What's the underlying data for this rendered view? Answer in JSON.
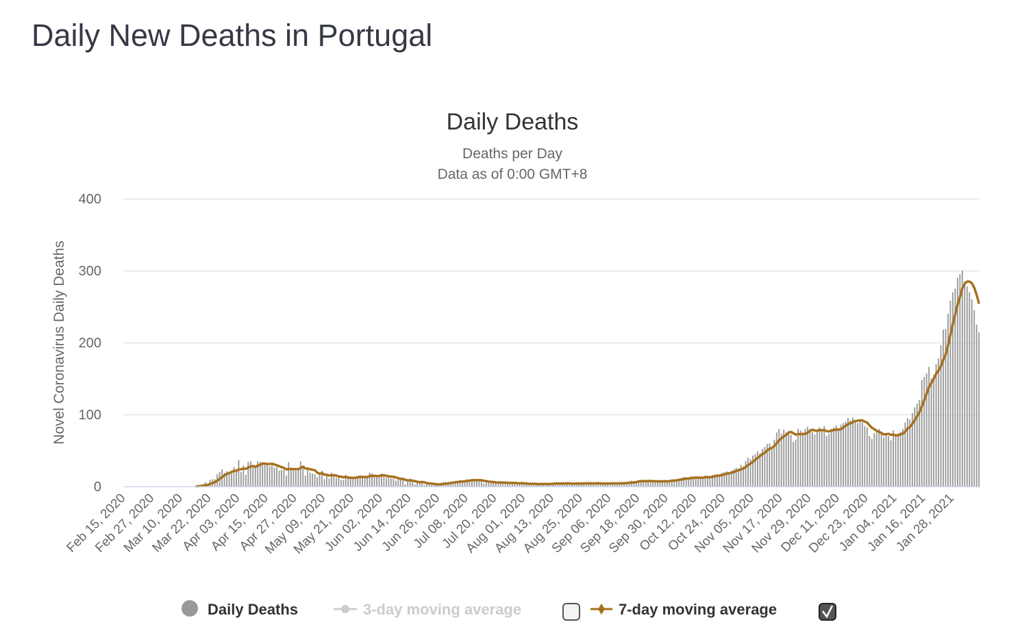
{
  "page": {
    "title": "Daily New Deaths in Portugal"
  },
  "chart_data": {
    "type": "bar",
    "title": "Daily Deaths",
    "subtitle_lines": [
      "Deaths per Day",
      "Data as of 0:00 GMT+8"
    ],
    "ylabel": "Novel Coronavirus Daily Deaths",
    "xlabel": "",
    "ylim": [
      0,
      400
    ],
    "yticks": [
      "0",
      "100",
      "200",
      "300",
      "400"
    ],
    "grid": true,
    "start_date": "2020-02-15",
    "end_date": "2021-02-08",
    "xtick_labels": [
      "Feb 15, 2020",
      "Feb 27, 2020",
      "Mar 10, 2020",
      "Mar 22, 2020",
      "Apr 03, 2020",
      "Apr 15, 2020",
      "Apr 27, 2020",
      "May 09, 2020",
      "May 21, 2020",
      "Jun 02, 2020",
      "Jun 14, 2020",
      "Jun 26, 2020",
      "Jul 08, 2020",
      "Jul 20, 2020",
      "Aug 01, 2020",
      "Aug 13, 2020",
      "Aug 25, 2020",
      "Sep 06, 2020",
      "Sep 18, 2020",
      "Sep 30, 2020",
      "Oct 12, 2020",
      "Oct 24, 2020",
      "Nov 05, 2020",
      "Nov 17, 2020",
      "Nov 29, 2020",
      "Dec 11, 2020",
      "Dec 23, 2020",
      "Jan 04, 2021",
      "Jan 16, 2021",
      "Jan 28, 2021"
    ],
    "series": [
      {
        "name": "Daily Deaths",
        "type": "bar",
        "color": "#999999",
        "visible": true,
        "values": [
          0,
          0,
          0,
          0,
          0,
          0,
          0,
          0,
          0,
          0,
          0,
          0,
          0,
          0,
          0,
          0,
          0,
          0,
          0,
          0,
          0,
          0,
          0,
          0,
          0,
          0,
          0,
          0,
          0,
          0,
          1,
          1,
          2,
          3,
          6,
          2,
          9,
          10,
          10,
          17,
          20,
          24,
          19,
          21,
          20,
          20,
          27,
          22,
          37,
          20,
          29,
          16,
          34,
          35,
          29,
          26,
          35,
          34,
          31,
          32,
          32,
          28,
          30,
          26,
          27,
          22,
          23,
          23,
          15,
          34,
          26,
          25,
          22,
          23,
          35,
          28,
          15,
          25,
          19,
          18,
          17,
          13,
          16,
          22,
          10,
          17,
          11,
          19,
          15,
          12,
          13,
          9,
          9,
          16,
          13,
          12,
          12,
          13,
          14,
          14,
          14,
          13,
          12,
          19,
          18,
          13,
          13,
          14,
          18,
          15,
          12,
          13,
          11,
          11,
          8,
          9,
          10,
          11,
          3,
          7,
          11,
          6,
          3,
          5,
          6,
          6,
          2,
          4,
          3,
          2,
          2,
          3,
          3,
          5,
          6,
          6,
          5,
          6,
          6,
          7,
          7,
          9,
          8,
          7,
          10,
          9,
          10,
          9,
          8,
          8,
          7,
          4,
          6,
          5,
          7,
          6,
          4,
          6,
          5,
          5,
          4,
          5,
          6,
          4,
          5,
          3,
          4,
          5,
          3,
          4,
          3,
          4,
          3,
          3,
          2,
          5,
          4,
          3,
          3,
          4,
          5,
          4,
          5,
          4,
          3,
          4,
          5,
          4,
          3,
          4,
          5,
          4,
          3,
          6,
          5,
          4,
          3,
          4,
          5,
          4,
          5,
          3,
          4,
          3,
          5,
          6,
          4,
          5,
          4,
          3,
          5,
          6,
          7,
          8,
          6,
          7,
          9,
          8,
          7,
          7,
          8,
          7,
          6,
          7,
          8,
          7,
          6,
          9,
          7,
          8,
          10,
          10,
          9,
          11,
          12,
          13,
          12,
          10,
          14,
          12,
          13,
          12,
          11,
          13,
          15,
          14,
          12,
          16,
          17,
          17,
          15,
          19,
          20,
          21,
          19,
          22,
          24,
          26,
          25,
          30,
          28,
          35,
          40,
          38,
          43,
          45,
          49,
          46,
          52,
          55,
          59,
          60,
          55,
          65,
          75,
          80,
          73,
          79,
          75,
          77,
          72,
          62,
          65,
          80,
          78,
          75,
          80,
          83,
          80,
          76,
          72,
          76,
          82,
          78,
          84,
          70,
          73,
          80,
          82,
          85,
          80,
          86,
          88,
          90,
          95,
          92,
          96,
          90,
          88,
          92,
          89,
          84,
          82,
          70,
          66,
          74,
          75,
          80,
          73,
          68,
          72,
          70,
          64,
          78,
          72,
          74,
          76,
          80,
          89,
          95,
          93,
          102,
          110,
          115,
          120,
          148,
          152,
          157,
          166,
          150,
          155,
          170,
          178,
          196,
          218,
          219,
          240,
          258,
          270,
          275,
          290,
          295,
          300,
          285,
          278,
          270,
          260,
          245,
          225,
          214
        ]
      },
      {
        "name": "3-day moving average",
        "type": "line",
        "color": "#cccccc",
        "visible": false
      },
      {
        "name": "7-day moving average",
        "type": "line",
        "color": "#a6711f",
        "visible": true,
        "window": 7
      }
    ],
    "legend": {
      "position": "bottom",
      "items": [
        {
          "label": "Daily Deaths",
          "color": "#999999",
          "active": true
        },
        {
          "label": "3-day moving average",
          "color": "#cccccc",
          "active": false,
          "checkbox_checked": false
        },
        {
          "label": "7-day moving average",
          "color": "#a6711f",
          "active": true,
          "checkbox_checked": true
        }
      ]
    }
  }
}
